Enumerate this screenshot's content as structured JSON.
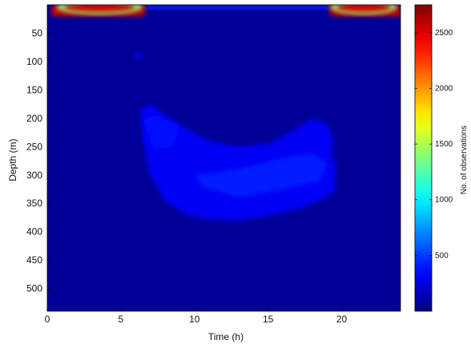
{
  "chart_data": {
    "type": "heatmap",
    "title": "",
    "xlabel": "Time (h)",
    "ylabel": "Depth (m)",
    "xlim": [
      0,
      24
    ],
    "ylim": [
      540,
      0
    ],
    "x_ticks": [
      0,
      5,
      10,
      15,
      20
    ],
    "y_ticks": [
      50,
      100,
      150,
      200,
      250,
      300,
      350,
      400,
      450,
      500
    ],
    "colorbar": {
      "label": "No. of observations",
      "range": [
        0,
        2750
      ],
      "ticks": [
        500,
        1000,
        1500,
        2000,
        2500
      ],
      "colormap": "jet"
    },
    "background_value": 60,
    "regions": [
      {
        "name": "surface-layer-early",
        "value": 2550,
        "polygon": [
          [
            0.3,
            0
          ],
          [
            6.6,
            0
          ],
          [
            6.8,
            8
          ],
          [
            6.4,
            20
          ],
          [
            0.3,
            20
          ]
        ]
      },
      {
        "name": "surface-layer-late",
        "value": 2550,
        "polygon": [
          [
            19.0,
            0
          ],
          [
            24.0,
            0
          ],
          [
            24.0,
            20
          ],
          [
            19.5,
            20
          ],
          [
            19.1,
            10
          ]
        ]
      },
      {
        "name": "surface-layer-midday",
        "value": 450,
        "polygon": [
          [
            6.6,
            0
          ],
          [
            19.1,
            0
          ],
          [
            19.2,
            8
          ],
          [
            6.8,
            8
          ]
        ]
      },
      {
        "name": "scattering-layer",
        "value": 320,
        "polygon": [
          [
            6.3,
            185
          ],
          [
            7.0,
            175
          ],
          [
            7.8,
            190
          ],
          [
            9.5,
            220
          ],
          [
            11.0,
            240
          ],
          [
            13.0,
            250
          ],
          [
            15.0,
            245
          ],
          [
            16.5,
            225
          ],
          [
            18.0,
            200
          ],
          [
            19.0,
            210
          ],
          [
            19.4,
            235
          ],
          [
            19.3,
            260
          ],
          [
            19.6,
            290
          ],
          [
            19.5,
            330
          ],
          [
            18.5,
            345
          ],
          [
            17.0,
            360
          ],
          [
            15.0,
            372
          ],
          [
            13.0,
            380
          ],
          [
            11.0,
            378
          ],
          [
            9.5,
            370
          ],
          [
            8.0,
            345
          ],
          [
            7.0,
            300
          ],
          [
            6.5,
            240
          ]
        ]
      },
      {
        "name": "scattering-core",
        "value": 420,
        "polygon": [
          [
            10.0,
            300
          ],
          [
            13.0,
            290
          ],
          [
            16.0,
            270
          ],
          [
            18.0,
            262
          ],
          [
            19.0,
            280
          ],
          [
            18.5,
            310
          ],
          [
            16.0,
            325
          ],
          [
            13.0,
            340
          ],
          [
            10.5,
            320
          ]
        ]
      },
      {
        "name": "scattering-upper-left",
        "value": 380,
        "polygon": [
          [
            6.5,
            200
          ],
          [
            7.5,
            195
          ],
          [
            9.0,
            215
          ],
          [
            8.5,
            250
          ],
          [
            7.2,
            255
          ]
        ]
      },
      {
        "name": "patch-near-100m",
        "value": 300,
        "polygon": [
          [
            5.9,
            85
          ],
          [
            6.3,
            82
          ],
          [
            6.4,
            95
          ],
          [
            6.0,
            98
          ]
        ]
      }
    ]
  }
}
